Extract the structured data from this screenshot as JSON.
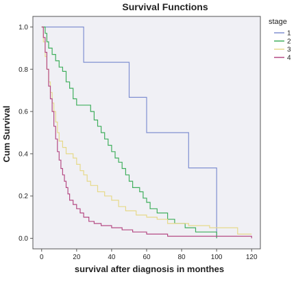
{
  "chart_data": {
    "type": "line",
    "title": "Survival Functions",
    "xlabel": "survival after diagnosis in monthes",
    "ylabel": "Cum Survival",
    "xlim": [
      -5,
      125
    ],
    "ylim": [
      -0.05,
      1.05
    ],
    "xticks": [
      0,
      20,
      40,
      60,
      80,
      100,
      120
    ],
    "yticks": [
      0.0,
      0.2,
      0.4,
      0.6,
      0.8,
      1.0
    ],
    "ytick_labels": [
      "0.0",
      "0.2",
      "0.4",
      "0.6",
      "0.8",
      "1.0"
    ],
    "grid": false,
    "legend_title": "stage",
    "legend_position": "right",
    "plot_background": "#f0f0f5",
    "series": [
      {
        "name": "1",
        "color": "#7f8fd1",
        "points": [
          [
            0,
            1.0
          ],
          [
            24,
            1.0
          ],
          [
            24,
            0.833
          ],
          [
            50,
            0.833
          ],
          [
            50,
            0.667
          ],
          [
            60,
            0.667
          ],
          [
            60,
            0.5
          ],
          [
            84,
            0.5
          ],
          [
            84,
            0.333
          ],
          [
            100,
            0.333
          ],
          [
            100,
            0.0
          ]
        ]
      },
      {
        "name": "2",
        "color": "#3fae5c",
        "points": [
          [
            0,
            1.0
          ],
          [
            2,
            1.0
          ],
          [
            2,
            0.97
          ],
          [
            3,
            0.97
          ],
          [
            3,
            0.93
          ],
          [
            4,
            0.93
          ],
          [
            4,
            0.9
          ],
          [
            6,
            0.9
          ],
          [
            6,
            0.87
          ],
          [
            8,
            0.87
          ],
          [
            8,
            0.84
          ],
          [
            10,
            0.84
          ],
          [
            10,
            0.81
          ],
          [
            12,
            0.81
          ],
          [
            12,
            0.79
          ],
          [
            14,
            0.79
          ],
          [
            14,
            0.74
          ],
          [
            16,
            0.74
          ],
          [
            16,
            0.71
          ],
          [
            18,
            0.71
          ],
          [
            18,
            0.66
          ],
          [
            20,
            0.66
          ],
          [
            20,
            0.63
          ],
          [
            28,
            0.63
          ],
          [
            28,
            0.6
          ],
          [
            30,
            0.6
          ],
          [
            30,
            0.56
          ],
          [
            32,
            0.56
          ],
          [
            32,
            0.53
          ],
          [
            34,
            0.53
          ],
          [
            34,
            0.5
          ],
          [
            36,
            0.5
          ],
          [
            36,
            0.47
          ],
          [
            38,
            0.47
          ],
          [
            38,
            0.44
          ],
          [
            40,
            0.44
          ],
          [
            40,
            0.41
          ],
          [
            42,
            0.41
          ],
          [
            42,
            0.38
          ],
          [
            44,
            0.38
          ],
          [
            44,
            0.36
          ],
          [
            46,
            0.36
          ],
          [
            46,
            0.33
          ],
          [
            48,
            0.33
          ],
          [
            48,
            0.3
          ],
          [
            50,
            0.3
          ],
          [
            50,
            0.27
          ],
          [
            52,
            0.27
          ],
          [
            52,
            0.24
          ],
          [
            56,
            0.24
          ],
          [
            56,
            0.22
          ],
          [
            58,
            0.22
          ],
          [
            58,
            0.19
          ],
          [
            60,
            0.19
          ],
          [
            60,
            0.17
          ],
          [
            62,
            0.17
          ],
          [
            62,
            0.14
          ],
          [
            66,
            0.14
          ],
          [
            66,
            0.12
          ],
          [
            72,
            0.12
          ],
          [
            72,
            0.09
          ],
          [
            76,
            0.09
          ],
          [
            76,
            0.07
          ],
          [
            82,
            0.07
          ],
          [
            82,
            0.05
          ],
          [
            88,
            0.05
          ],
          [
            88,
            0.03
          ],
          [
            100,
            0.03
          ],
          [
            100,
            0.0
          ]
        ]
      },
      {
        "name": "3",
        "color": "#e6d98a",
        "points": [
          [
            0,
            1.0
          ],
          [
            1,
            1.0
          ],
          [
            1,
            0.93
          ],
          [
            2,
            0.93
          ],
          [
            2,
            0.86
          ],
          [
            3,
            0.86
          ],
          [
            3,
            0.8
          ],
          [
            4,
            0.8
          ],
          [
            4,
            0.74
          ],
          [
            5,
            0.74
          ],
          [
            5,
            0.69
          ],
          [
            6,
            0.69
          ],
          [
            6,
            0.64
          ],
          [
            7,
            0.64
          ],
          [
            7,
            0.6
          ],
          [
            8,
            0.6
          ],
          [
            8,
            0.55
          ],
          [
            9,
            0.55
          ],
          [
            9,
            0.5
          ],
          [
            10,
            0.5
          ],
          [
            10,
            0.46
          ],
          [
            12,
            0.46
          ],
          [
            12,
            0.43
          ],
          [
            14,
            0.43
          ],
          [
            14,
            0.4
          ],
          [
            18,
            0.4
          ],
          [
            18,
            0.38
          ],
          [
            20,
            0.38
          ],
          [
            20,
            0.35
          ],
          [
            22,
            0.35
          ],
          [
            22,
            0.32
          ],
          [
            24,
            0.32
          ],
          [
            24,
            0.3
          ],
          [
            26,
            0.3
          ],
          [
            26,
            0.27
          ],
          [
            28,
            0.27
          ],
          [
            28,
            0.25
          ],
          [
            32,
            0.25
          ],
          [
            32,
            0.22
          ],
          [
            36,
            0.22
          ],
          [
            36,
            0.2
          ],
          [
            40,
            0.2
          ],
          [
            40,
            0.18
          ],
          [
            44,
            0.18
          ],
          [
            44,
            0.15
          ],
          [
            48,
            0.15
          ],
          [
            48,
            0.13
          ],
          [
            54,
            0.13
          ],
          [
            54,
            0.11
          ],
          [
            60,
            0.11
          ],
          [
            60,
            0.1
          ],
          [
            66,
            0.1
          ],
          [
            66,
            0.09
          ],
          [
            72,
            0.09
          ],
          [
            72,
            0.07
          ],
          [
            84,
            0.07
          ],
          [
            84,
            0.06
          ],
          [
            96,
            0.06
          ],
          [
            96,
            0.05
          ],
          [
            112,
            0.05
          ],
          [
            112,
            0.02
          ],
          [
            120,
            0.02
          ]
        ]
      },
      {
        "name": "4",
        "color": "#b54a84",
        "points": [
          [
            0,
            1.0
          ],
          [
            1,
            1.0
          ],
          [
            1,
            0.95
          ],
          [
            2,
            0.95
          ],
          [
            2,
            0.88
          ],
          [
            3,
            0.88
          ],
          [
            3,
            0.8
          ],
          [
            4,
            0.8
          ],
          [
            4,
            0.72
          ],
          [
            5,
            0.72
          ],
          [
            5,
            0.66
          ],
          [
            6,
            0.66
          ],
          [
            6,
            0.6
          ],
          [
            7,
            0.6
          ],
          [
            7,
            0.53
          ],
          [
            8,
            0.53
          ],
          [
            8,
            0.47
          ],
          [
            9,
            0.47
          ],
          [
            9,
            0.41
          ],
          [
            10,
            0.41
          ],
          [
            10,
            0.37
          ],
          [
            11,
            0.37
          ],
          [
            11,
            0.33
          ],
          [
            12,
            0.33
          ],
          [
            12,
            0.3
          ],
          [
            13,
            0.3
          ],
          [
            13,
            0.27
          ],
          [
            14,
            0.27
          ],
          [
            14,
            0.24
          ],
          [
            15,
            0.24
          ],
          [
            15,
            0.21
          ],
          [
            16,
            0.21
          ],
          [
            16,
            0.18
          ],
          [
            18,
            0.18
          ],
          [
            18,
            0.16
          ],
          [
            20,
            0.16
          ],
          [
            20,
            0.14
          ],
          [
            22,
            0.14
          ],
          [
            22,
            0.12
          ],
          [
            24,
            0.12
          ],
          [
            24,
            0.1
          ],
          [
            27,
            0.1
          ],
          [
            27,
            0.08
          ],
          [
            30,
            0.08
          ],
          [
            30,
            0.07
          ],
          [
            34,
            0.07
          ],
          [
            34,
            0.06
          ],
          [
            40,
            0.06
          ],
          [
            40,
            0.05
          ],
          [
            46,
            0.05
          ],
          [
            46,
            0.04
          ],
          [
            52,
            0.04
          ],
          [
            52,
            0.03
          ],
          [
            60,
            0.03
          ],
          [
            60,
            0.02
          ],
          [
            72,
            0.02
          ],
          [
            72,
            0.01
          ],
          [
            100,
            0.01
          ],
          [
            100,
            0.01
          ],
          [
            120,
            0.01
          ],
          [
            120,
            0.0
          ]
        ]
      }
    ]
  }
}
